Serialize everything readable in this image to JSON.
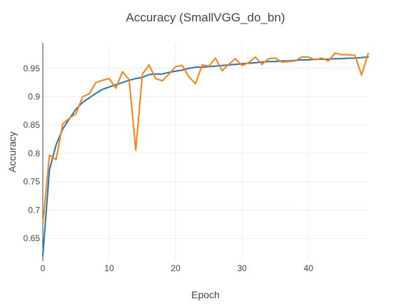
{
  "chart_data": {
    "type": "line",
    "title": "Accuracy (SmallVGG_do_bn)",
    "xlabel": "Epoch",
    "ylabel": "Accuracy",
    "xlim": [
      0,
      49
    ],
    "ylim": [
      0.61,
      0.995
    ],
    "xticks": [
      0,
      10,
      20,
      30,
      40
    ],
    "yticks": [
      0.65,
      0.7,
      0.75,
      0.8,
      0.85,
      0.9,
      0.95
    ],
    "ytick_labels": [
      "0.65",
      "0.7",
      "0.75",
      "0.8",
      "0.85",
      "0.9",
      "0.95"
    ],
    "grid": true,
    "series": [
      {
        "color": "#1f77b4",
        "x": [
          0,
          1,
          2,
          3,
          4,
          5,
          6,
          7,
          8,
          9,
          10,
          11,
          12,
          13,
          14,
          15,
          16,
          17,
          18,
          19,
          20,
          21,
          22,
          23,
          24,
          25,
          26,
          27,
          28,
          29,
          30,
          31,
          32,
          33,
          34,
          35,
          36,
          37,
          38,
          39,
          40,
          41,
          42,
          43,
          44,
          45,
          46,
          47,
          48,
          49
        ],
        "values": [
          0.62,
          0.771,
          0.815,
          0.843,
          0.861,
          0.878,
          0.89,
          0.898,
          0.906,
          0.913,
          0.917,
          0.921,
          0.925,
          0.929,
          0.932,
          0.934,
          0.939,
          0.94,
          0.94,
          0.943,
          0.945,
          0.947,
          0.95,
          0.952,
          0.952,
          0.953,
          0.954,
          0.955,
          0.956,
          0.957,
          0.958,
          0.959,
          0.96,
          0.961,
          0.962,
          0.962,
          0.963,
          0.963,
          0.964,
          0.965,
          0.965,
          0.966,
          0.966,
          0.966,
          0.967,
          0.967,
          0.968,
          0.968,
          0.969,
          0.97
        ]
      },
      {
        "color": "#ff7f0e",
        "x": [
          0,
          1,
          2,
          3,
          4,
          5,
          6,
          7,
          8,
          9,
          10,
          11,
          12,
          13,
          14,
          15,
          16,
          17,
          18,
          19,
          20,
          21,
          22,
          23,
          24,
          25,
          26,
          27,
          28,
          29,
          30,
          31,
          32,
          33,
          34,
          35,
          36,
          37,
          38,
          39,
          40,
          41,
          42,
          43,
          44,
          45,
          46,
          47,
          48,
          49
        ],
        "values": [
          0.675,
          0.797,
          0.789,
          0.852,
          0.862,
          0.87,
          0.9,
          0.905,
          0.925,
          0.929,
          0.932,
          0.915,
          0.944,
          0.93,
          0.806,
          0.94,
          0.956,
          0.932,
          0.928,
          0.94,
          0.953,
          0.955,
          0.935,
          0.923,
          0.956,
          0.954,
          0.968,
          0.946,
          0.957,
          0.967,
          0.955,
          0.96,
          0.97,
          0.957,
          0.967,
          0.968,
          0.961,
          0.962,
          0.963,
          0.97,
          0.97,
          0.965,
          0.968,
          0.963,
          0.977,
          0.974,
          0.974,
          0.973,
          0.938,
          0.976
        ]
      }
    ]
  }
}
